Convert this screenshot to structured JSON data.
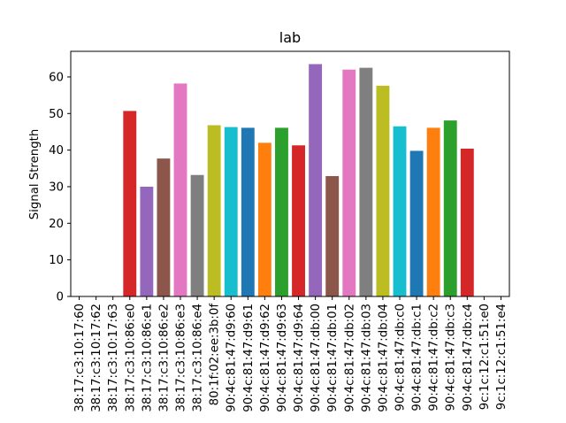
{
  "chart_data": {
    "type": "bar",
    "title": "lab",
    "xlabel": "",
    "ylabel": "Signal Strength",
    "ylim": [
      0,
      67
    ],
    "yticks": [
      0,
      10,
      20,
      30,
      40,
      50,
      60
    ],
    "grid": false,
    "categories": [
      "38:17:c3:10:17:60",
      "38:17:c3:10:17:62",
      "38:17:c3:10:17:63",
      "38:17:c3:10:86:e0",
      "38:17:c3:10:86:e1",
      "38:17:c3:10:86:e2",
      "38:17:c3:10:86:e3",
      "38:17:c3:10:86:e4",
      "80:1f:02:ee:3b:0f",
      "90:4c:81:47:d9:60",
      "90:4c:81:47:d9:61",
      "90:4c:81:47:d9:62",
      "90:4c:81:47:d9:63",
      "90:4c:81:47:d9:64",
      "90:4c:81:47:db:00",
      "90:4c:81:47:db:01",
      "90:4c:81:47:db:02",
      "90:4c:81:47:db:03",
      "90:4c:81:47:db:04",
      "90:4c:81:47:db:c0",
      "90:4c:81:47:db:c1",
      "90:4c:81:47:db:c2",
      "90:4c:81:47:db:c3",
      "90:4c:81:47:db:c4",
      "9c:1c:12:c1:51:e0",
      "9c:1c:12:c1:51:e4"
    ],
    "values": [
      0,
      0,
      0,
      50.7,
      30.0,
      37.7,
      58.2,
      33.2,
      46.8,
      46.3,
      46.1,
      42.0,
      46.1,
      41.3,
      63.5,
      32.9,
      62.0,
      62.5,
      57.6,
      46.5,
      39.8,
      46.1,
      48.1,
      40.4,
      0,
      0
    ],
    "colors": [
      "#1f77b4",
      "#ff7f0e",
      "#2ca02c",
      "#d62728",
      "#9467bd",
      "#8c564b",
      "#e377c2",
      "#7f7f7f",
      "#bcbd22",
      "#17becf"
    ]
  }
}
